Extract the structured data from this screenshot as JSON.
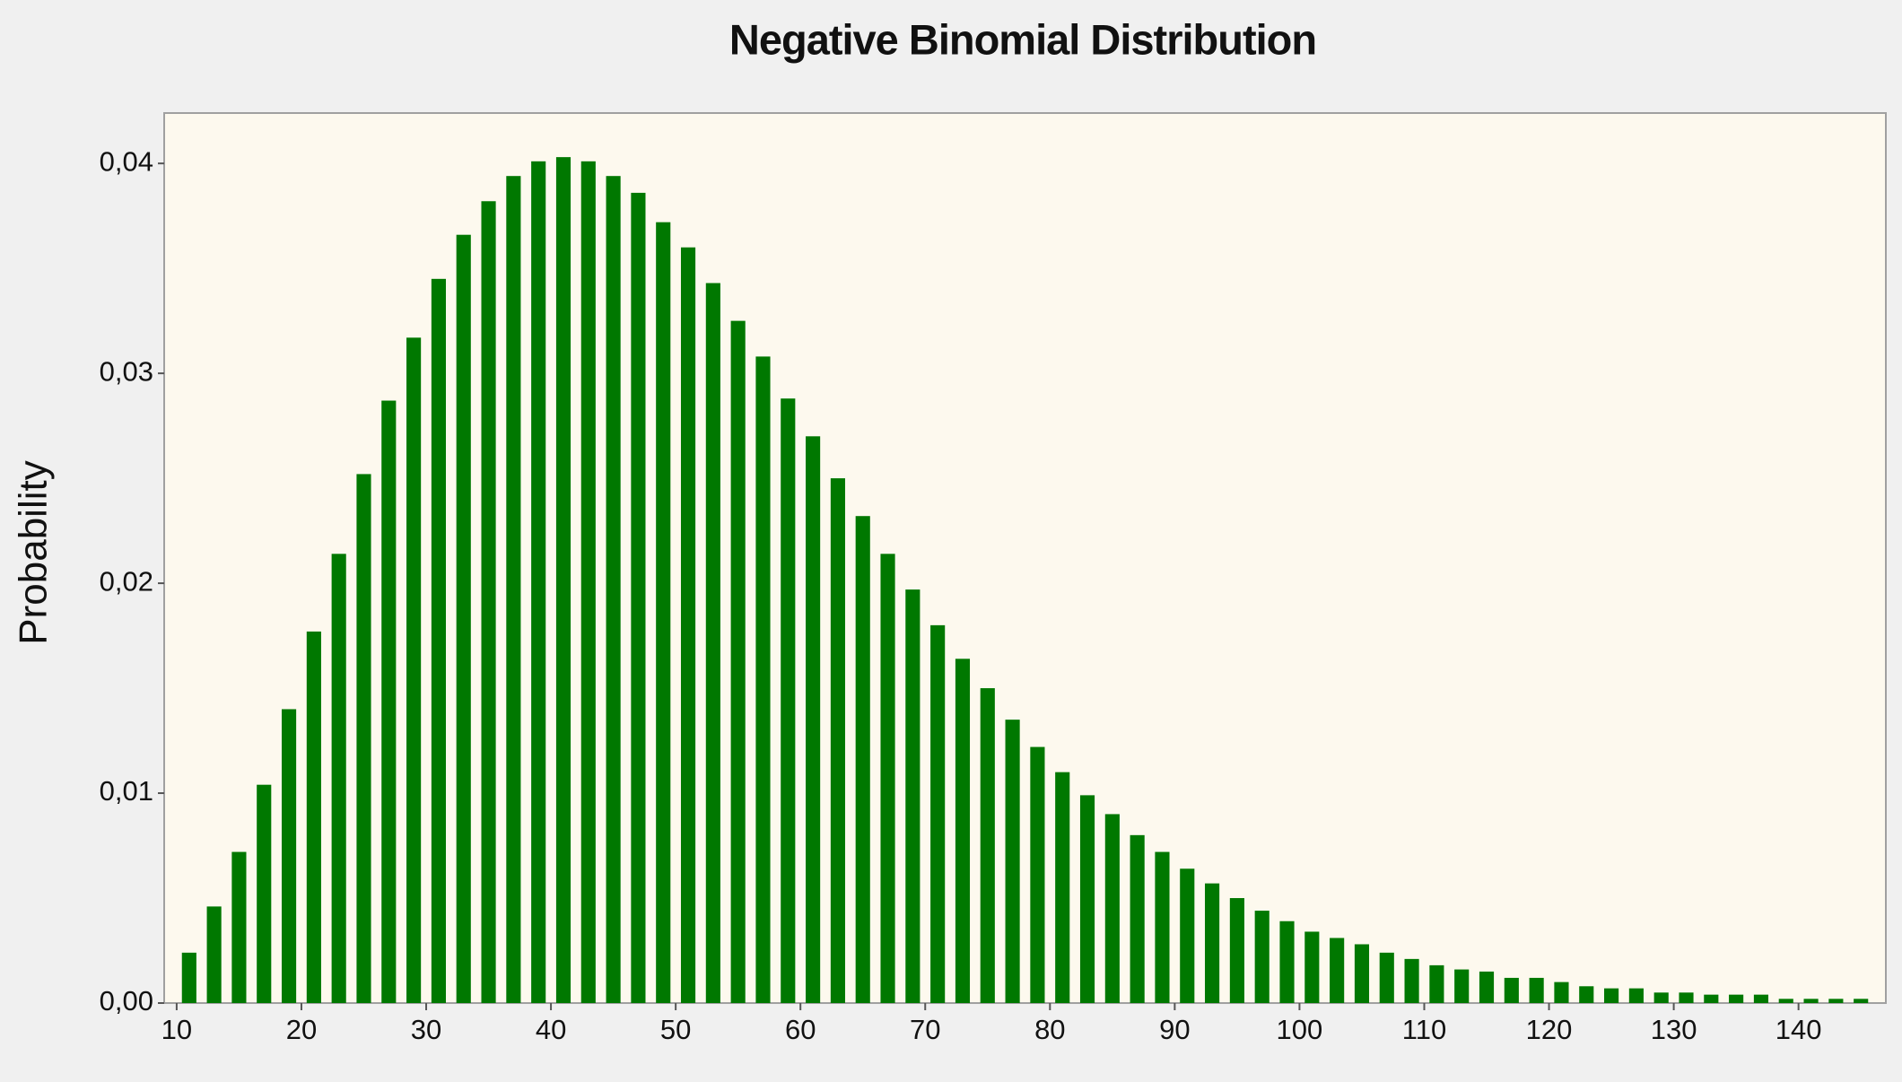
{
  "chart_data": {
    "type": "bar",
    "title": "Negative Binomial Distribution",
    "y_label": "Probability",
    "x": [
      11,
      13,
      15,
      17,
      19,
      21,
      23,
      25,
      27,
      29,
      31,
      33,
      35,
      37,
      39,
      41,
      43,
      45,
      47,
      49,
      51,
      53,
      55,
      57,
      59,
      61,
      63,
      65,
      67,
      69,
      71,
      73,
      75,
      77,
      79,
      81,
      83,
      85,
      87,
      89,
      91,
      93,
      95,
      97,
      99,
      101,
      103,
      105,
      107,
      109,
      111,
      113,
      115,
      117,
      119,
      121,
      123,
      125,
      127,
      129,
      131,
      133,
      135,
      137,
      139,
      141,
      143,
      145
    ],
    "values": [
      0.0024,
      0.0046,
      0.0072,
      0.0104,
      0.014,
      0.0177,
      0.0214,
      0.0252,
      0.0287,
      0.0317,
      0.0345,
      0.0366,
      0.0382,
      0.0394,
      0.0401,
      0.0403,
      0.0401,
      0.0394,
      0.0386,
      0.0372,
      0.036,
      0.0343,
      0.0325,
      0.0308,
      0.0288,
      0.027,
      0.025,
      0.0232,
      0.0214,
      0.0197,
      0.018,
      0.0164,
      0.015,
      0.0135,
      0.0122,
      0.011,
      0.0099,
      0.009,
      0.008,
      0.0072,
      0.0064,
      0.0057,
      0.005,
      0.0044,
      0.0039,
      0.0034,
      0.0031,
      0.0028,
      0.0024,
      0.0021,
      0.0018,
      0.0016,
      0.0015,
      0.0012,
      0.0012,
      0.001,
      0.0008,
      0.0007,
      0.0007,
      0.0005,
      0.0005,
      0.0004,
      0.0004,
      0.0004,
      0.0002,
      0.0002,
      0.0002,
      0.0002
    ],
    "color": "#007800",
    "xlim": [
      9,
      147
    ],
    "xticks": [
      10,
      20,
      30,
      40,
      50,
      60,
      70,
      80,
      90,
      100,
      110,
      120,
      130,
      140
    ],
    "ylim": [
      0,
      0.0424
    ],
    "yticks": [
      {
        "value": 0,
        "label": "0,00"
      },
      {
        "value": 0.01,
        "label": "0,01"
      },
      {
        "value": 0.02,
        "label": "0,02"
      },
      {
        "value": 0.03,
        "label": "0,03"
      },
      {
        "value": 0.04,
        "label": "0,04"
      }
    ],
    "grid": false
  }
}
